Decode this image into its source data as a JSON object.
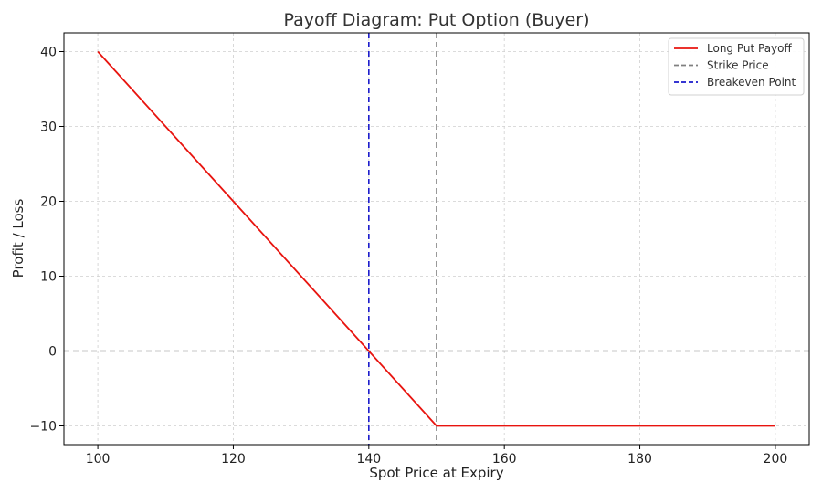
{
  "chart_data": {
    "type": "line",
    "title": "Payoff Diagram: Put Option (Buyer)",
    "xlabel": "Spot Price at Expiry",
    "ylabel": "Profit / Loss",
    "xlim": [
      95,
      205
    ],
    "ylim": [
      -12.5,
      42.5
    ],
    "xticks": [
      100,
      120,
      140,
      160,
      180,
      200
    ],
    "xtick_labels": [
      "100",
      "120",
      "140",
      "160",
      "180",
      "200"
    ],
    "yticks": [
      -10,
      0,
      10,
      20,
      30,
      40
    ],
    "ytick_labels": [
      "−10",
      "0",
      "10",
      "20",
      "30",
      "40"
    ],
    "grid": true,
    "legend_position": "top-right",
    "series": [
      {
        "name": "Long Put Payoff",
        "color": "#e8140f",
        "style": "solid",
        "x": [
          100,
          150,
          200
        ],
        "y": [
          40,
          -10,
          -10
        ]
      }
    ],
    "reference_lines": [
      {
        "name": "Strike Price",
        "orientation": "vertical",
        "value": 150,
        "color": "#808080",
        "style": "dashed"
      },
      {
        "name": "Breakeven Point",
        "orientation": "vertical",
        "value": 140,
        "color": "#1a1acc",
        "style": "dashed"
      },
      {
        "name": "",
        "orientation": "horizontal",
        "value": 0,
        "color": "#222222",
        "style": "dashed"
      }
    ],
    "legend": [
      "Long Put Payoff",
      "Strike Price",
      "Breakeven Point"
    ]
  }
}
